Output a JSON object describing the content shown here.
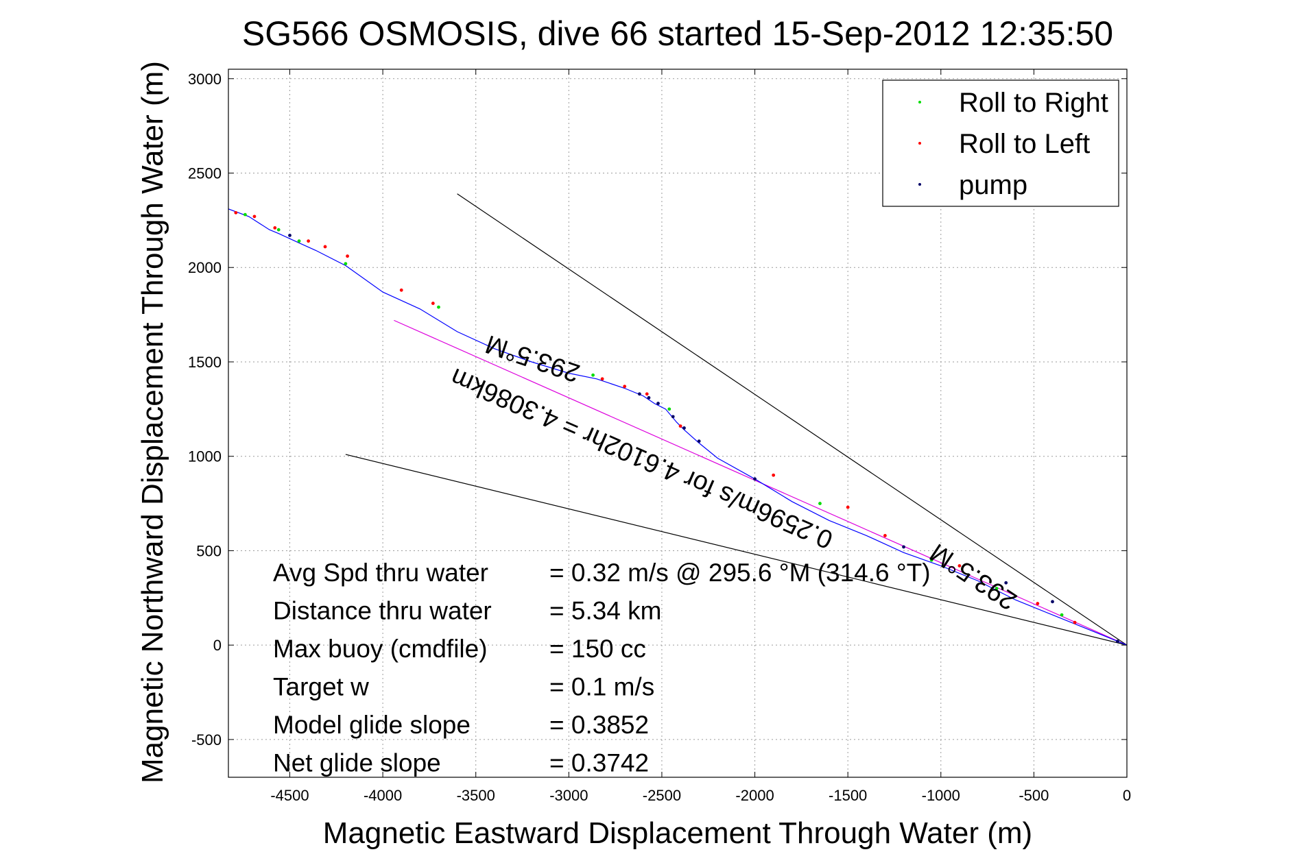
{
  "chart_data": {
    "type": "line",
    "title": "SG566 OSMOSIS, dive 66 started 15-Sep-2012 12:35:50",
    "xlabel": "Magnetic Eastward Displacement Through Water (m)",
    "ylabel": "Magnetic Northward Displacement Through Water (m)",
    "xlim": [
      -4830,
      0
    ],
    "ylim": [
      -700,
      3050
    ],
    "xticks": [
      -4500,
      -4000,
      -3500,
      -3000,
      -2500,
      -2000,
      -1500,
      -1000,
      -500,
      0
    ],
    "yticks": [
      -500,
      0,
      500,
      1000,
      1500,
      2000,
      2500,
      3000
    ],
    "xtick_labels": [
      "-4500",
      "-4000",
      "-3500",
      "-3000",
      "-2500",
      "-2000",
      "-1500",
      "-1000",
      "-500",
      "0"
    ],
    "ytick_labels": [
      "-500",
      "0",
      "500",
      "1000",
      "1500",
      "2000",
      "2500",
      "3000"
    ],
    "grid": true,
    "legend": {
      "position": "top-right",
      "entries": [
        {
          "label": "Roll to Right",
          "color": "#00dd00"
        },
        {
          "label": "Roll to Left",
          "color": "#ff0000"
        },
        {
          "label": "pump",
          "color": "#000066"
        }
      ]
    },
    "track": {
      "color": "#0000ff",
      "x": [
        -4830,
        -4720,
        -4610,
        -4560,
        -4450,
        -4360,
        -4200,
        -4000,
        -3800,
        -3600,
        -3400,
        -3200,
        -3000,
        -2850,
        -2700,
        -2600,
        -2540,
        -2480,
        -2420,
        -2380,
        -2300,
        -2200,
        -2000,
        -1800,
        -1600,
        -1400,
        -1200,
        -1000,
        -800,
        -600,
        -400,
        -200,
        0
      ],
      "y": [
        2310,
        2270,
        2200,
        2180,
        2130,
        2090,
        2010,
        1870,
        1780,
        1660,
        1570,
        1500,
        1440,
        1410,
        1360,
        1320,
        1280,
        1250,
        1180,
        1140,
        1070,
        990,
        880,
        760,
        660,
        580,
        490,
        420,
        340,
        240,
        160,
        80,
        0
      ]
    },
    "markers": {
      "roll_right": {
        "x": [
          -4740,
          -4560,
          -4450,
          -4200,
          -3700,
          -2870,
          -2460,
          -1650,
          -1050,
          -700,
          -350
        ],
        "y": [
          2280,
          2200,
          2140,
          2020,
          1790,
          1430,
          1250,
          750,
          450,
          300,
          160
        ]
      },
      "roll_left": {
        "x": [
          -4790,
          -4690,
          -4580,
          -4400,
          -4310,
          -4190,
          -3900,
          -3730,
          -2820,
          -2700,
          -2580,
          -2400,
          -1900,
          -1500,
          -1300,
          -900,
          -480,
          -280
        ],
        "y": [
          2290,
          2270,
          2210,
          2140,
          2110,
          2060,
          1880,
          1810,
          1410,
          1370,
          1330,
          1160,
          900,
          730,
          580,
          420,
          220,
          120
        ]
      },
      "pump": {
        "x": [
          -4500,
          -2620,
          -2570,
          -2520,
          -2440,
          -2380,
          -2300,
          -2000,
          -1200,
          -650,
          -400,
          -50
        ],
        "y": [
          2170,
          1330,
          1310,
          1280,
          1210,
          1150,
          1080,
          880,
          520,
          330,
          230,
          20
        ]
      }
    },
    "reference_lines": [
      {
        "color": "#000000",
        "x": [
          -3600,
          0
        ],
        "y": [
          2390,
          0
        ]
      },
      {
        "color": "#000000",
        "x": [
          -4200,
          0
        ],
        "y": [
          1010,
          0
        ]
      },
      {
        "color": "#dd00dd",
        "x": [
          -3940,
          0
        ],
        "y": [
          1720,
          0
        ]
      }
    ],
    "annotations": [
      {
        "text": "293.5°M",
        "x": -3180,
        "y": 1560,
        "rotate": 198.6
      },
      {
        "text": "0.2596m/s for 4.6102hr = 4.3086km",
        "x": -2590,
        "y": 1030,
        "rotate": 203.6
      },
      {
        "text": "293.5°M",
        "x": -800,
        "y": 400,
        "rotate": 213.6
      }
    ],
    "stats": [
      {
        "label": "Avg Spd thru water",
        "value": "=  0.32 m/s @ 295.6  °M (314.6 °T)"
      },
      {
        "label": "Distance thru water",
        "value": "=  5.34 km"
      },
      {
        "label": "Max buoy (cmdfile)",
        "value": "= 150 cc"
      },
      {
        "label": "Target w",
        "value": "= 0.1 m/s"
      },
      {
        "label": "Model glide slope",
        "value": "= 0.3852"
      },
      {
        "label": "Net glide slope",
        "value": "= 0.3742"
      }
    ]
  }
}
